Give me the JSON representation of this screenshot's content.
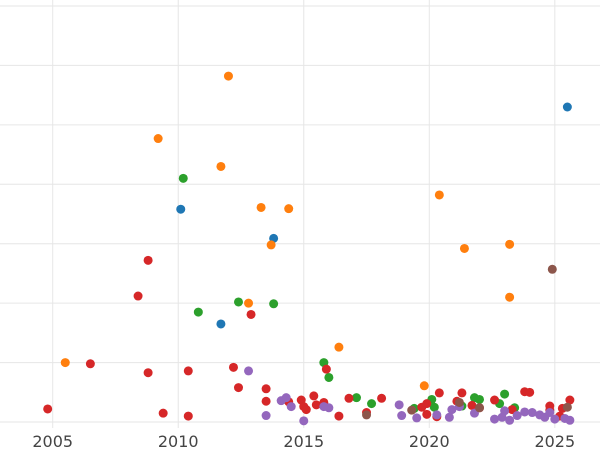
{
  "chart_data": {
    "type": "scatter",
    "title": "",
    "xlabel": "",
    "ylabel": "",
    "xlim": [
      2002.9,
      2026.8
    ],
    "ylim": [
      -0.1,
      7.1
    ],
    "x_ticks": [
      2005,
      2010,
      2015,
      2020,
      2025
    ],
    "y_gridlines": [
      0,
      1,
      2,
      3,
      4,
      5,
      6,
      7
    ],
    "grid": true,
    "legend": "none",
    "series": [
      {
        "color": "#1f77b4",
        "points": [
          [
            2010.1,
            3.58
          ],
          [
            2011.7,
            1.65
          ],
          [
            2013.8,
            3.09
          ],
          [
            2025.5,
            5.3
          ]
        ]
      },
      {
        "color": "#ff7f0e",
        "points": [
          [
            2005.5,
            1.0
          ],
          [
            2009.2,
            4.77
          ],
          [
            2011.7,
            4.3
          ],
          [
            2012.0,
            5.82
          ],
          [
            2012.8,
            2.0
          ],
          [
            2013.3,
            3.61
          ],
          [
            2013.7,
            2.98
          ],
          [
            2014.4,
            3.59
          ],
          [
            2016.4,
            1.26
          ],
          [
            2019.8,
            0.61
          ],
          [
            2020.4,
            3.82
          ],
          [
            2021.4,
            2.92
          ],
          [
            2023.2,
            2.99
          ],
          [
            2023.2,
            2.1
          ]
        ]
      },
      {
        "color": "#2ca02c",
        "points": [
          [
            2010.2,
            4.1
          ],
          [
            2010.8,
            1.85
          ],
          [
            2012.4,
            2.02
          ],
          [
            2013.8,
            1.99
          ],
          [
            2015.8,
            1.0
          ],
          [
            2016.0,
            0.75
          ],
          [
            2017.1,
            0.41
          ],
          [
            2017.7,
            0.31
          ],
          [
            2019.4,
            0.23
          ],
          [
            2020.1,
            0.38
          ],
          [
            2020.2,
            0.25
          ],
          [
            2021.3,
            0.27
          ],
          [
            2021.8,
            0.41
          ],
          [
            2022.0,
            0.38
          ],
          [
            2022.8,
            0.31
          ],
          [
            2023.0,
            0.47
          ],
          [
            2023.4,
            0.24
          ]
        ]
      },
      {
        "color": "#d62728",
        "points": [
          [
            2004.8,
            0.22
          ],
          [
            2006.5,
            0.98
          ],
          [
            2008.4,
            2.12
          ],
          [
            2008.8,
            2.72
          ],
          [
            2008.8,
            0.83
          ],
          [
            2009.4,
            0.15
          ],
          [
            2010.4,
            0.86
          ],
          [
            2010.4,
            0.1
          ],
          [
            2012.2,
            0.92
          ],
          [
            2012.4,
            0.58
          ],
          [
            2012.9,
            1.81
          ],
          [
            2013.5,
            0.56
          ],
          [
            2013.5,
            0.35
          ],
          [
            2014.4,
            0.34
          ],
          [
            2014.9,
            0.37
          ],
          [
            2015.0,
            0.26
          ],
          [
            2015.1,
            0.21
          ],
          [
            2015.4,
            0.44
          ],
          [
            2015.5,
            0.29
          ],
          [
            2015.8,
            0.33
          ],
          [
            2015.9,
            0.89
          ],
          [
            2016.4,
            0.1
          ],
          [
            2016.8,
            0.4
          ],
          [
            2017.5,
            0.16
          ],
          [
            2018.1,
            0.4
          ],
          [
            2019.7,
            0.25
          ],
          [
            2019.9,
            0.31
          ],
          [
            2019.9,
            0.13
          ],
          [
            2020.3,
            0.09
          ],
          [
            2020.4,
            0.49
          ],
          [
            2021.1,
            0.35
          ],
          [
            2021.3,
            0.49
          ],
          [
            2021.7,
            0.28
          ],
          [
            2022.0,
            0.24
          ],
          [
            2022.6,
            0.37
          ],
          [
            2023.3,
            0.21
          ],
          [
            2023.8,
            0.51
          ],
          [
            2024.0,
            0.5
          ],
          [
            2024.8,
            0.27
          ],
          [
            2024.8,
            0.2
          ],
          [
            2025.2,
            0.1
          ],
          [
            2025.3,
            0.23
          ],
          [
            2025.6,
            0.37
          ]
        ]
      },
      {
        "color": "#9467bd",
        "points": [
          [
            2012.8,
            0.86
          ],
          [
            2013.5,
            0.11
          ],
          [
            2014.1,
            0.36
          ],
          [
            2014.3,
            0.41
          ],
          [
            2014.5,
            0.26
          ],
          [
            2015.0,
            0.02
          ],
          [
            2015.8,
            0.26
          ],
          [
            2016.0,
            0.24
          ],
          [
            2018.8,
            0.29
          ],
          [
            2018.9,
            0.11
          ],
          [
            2019.5,
            0.07
          ],
          [
            2020.3,
            0.12
          ],
          [
            2020.8,
            0.08
          ],
          [
            2020.9,
            0.21
          ],
          [
            2021.2,
            0.26
          ],
          [
            2021.8,
            0.15
          ],
          [
            2022.6,
            0.05
          ],
          [
            2022.9,
            0.08
          ],
          [
            2023.0,
            0.19
          ],
          [
            2023.2,
            0.03
          ],
          [
            2023.5,
            0.11
          ],
          [
            2023.8,
            0.17
          ],
          [
            2024.1,
            0.16
          ],
          [
            2024.4,
            0.12
          ],
          [
            2024.6,
            0.08
          ],
          [
            2024.8,
            0.16
          ],
          [
            2025.0,
            0.05
          ],
          [
            2025.4,
            0.06
          ],
          [
            2025.6,
            0.03
          ]
        ]
      },
      {
        "color": "#8c564b",
        "points": [
          [
            2017.5,
            0.12
          ],
          [
            2019.3,
            0.2
          ],
          [
            2021.2,
            0.33
          ],
          [
            2022.0,
            0.24
          ],
          [
            2024.9,
            2.57
          ],
          [
            2025.5,
            0.25
          ]
        ]
      }
    ]
  }
}
